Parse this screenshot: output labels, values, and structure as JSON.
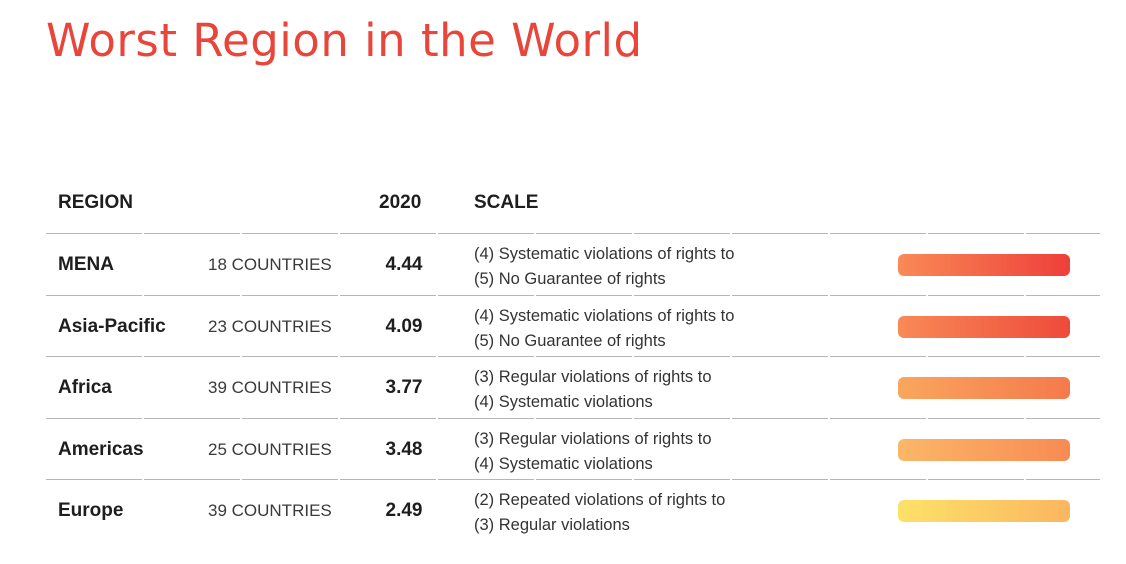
{
  "title": "Worst Region in the World",
  "header": {
    "region": "REGION",
    "year": "2020",
    "scale": "SCALE"
  },
  "chart_data": {
    "type": "table",
    "columns": [
      "REGION",
      "",
      "2020",
      "SCALE"
    ],
    "rows": [
      {
        "region": "MENA",
        "countries": "18 COUNTRIES",
        "score": "4.44",
        "scale_line1": "(4) Systematic violations of rights to",
        "scale_line2": "(5) No Guarantee of rights",
        "color_from": "#f98a56",
        "color_to": "#ee3f3a"
      },
      {
        "region": "Asia-Pacific",
        "countries": "23 COUNTRIES",
        "score": "4.09",
        "scale_line1": "(4) Systematic violations of rights to",
        "scale_line2": "(5) No Guarantee of rights",
        "color_from": "#f98a56",
        "color_to": "#ee4a3b"
      },
      {
        "region": "Africa",
        "countries": "39 COUNTRIES",
        "score": "3.77",
        "scale_line1": "(3) Regular violations of rights to",
        "scale_line2": "(4) Systematic violations",
        "color_from": "#f9a65e",
        "color_to": "#f5794c"
      },
      {
        "region": "Americas",
        "countries": "25 COUNTRIES",
        "score": "3.48",
        "scale_line1": "(3) Regular violations of rights to",
        "scale_line2": "(4) Systematic violations",
        "color_from": "#fbb768",
        "color_to": "#f78b53"
      },
      {
        "region": "Europe",
        "countries": "39 COUNTRIES",
        "score": "2.49",
        "scale_line1": "(2) Repeated violations of rights to",
        "scale_line2": "(3) Regular violations",
        "color_from": "#fde169",
        "color_to": "#fbb660"
      }
    ]
  }
}
